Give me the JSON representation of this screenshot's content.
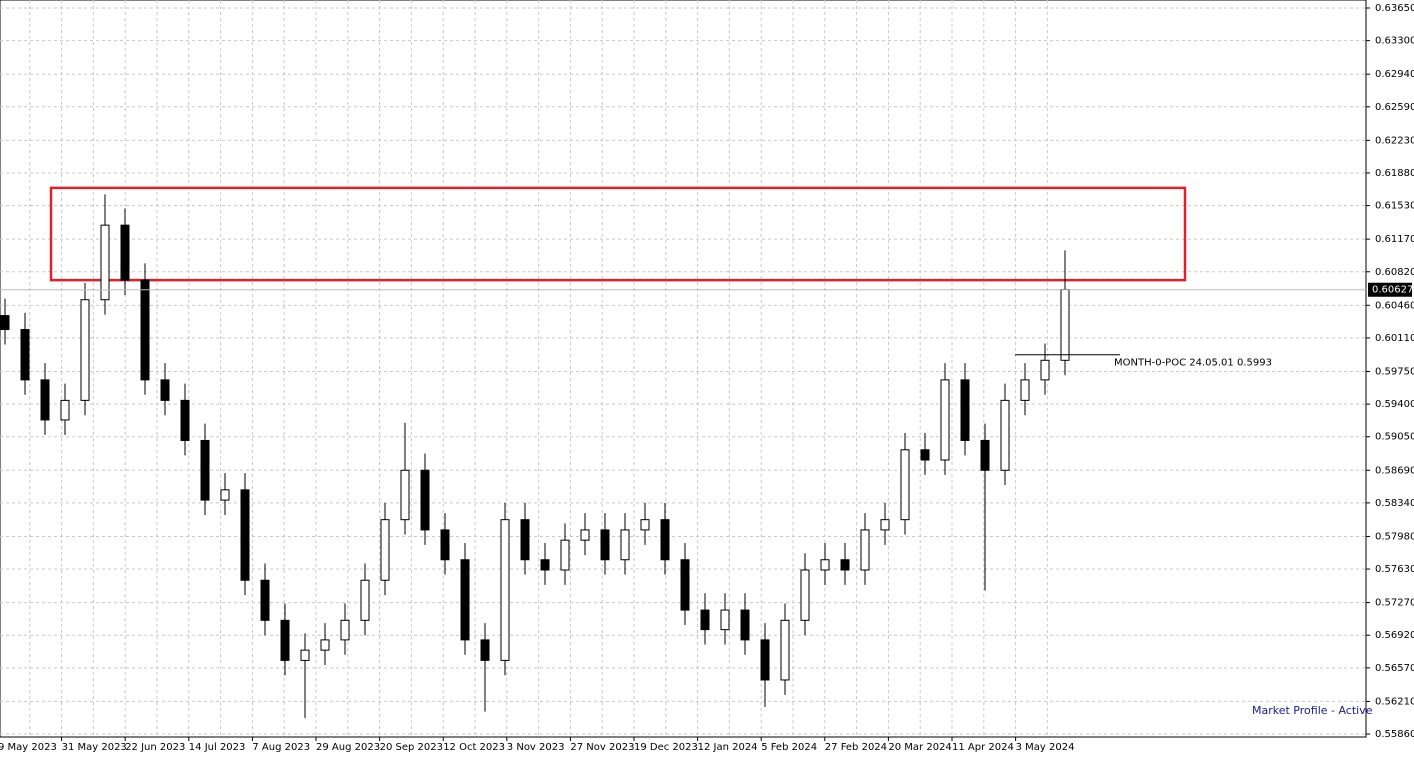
{
  "chart_data": {
    "type": "candlestick",
    "x_labels": [
      "9 May 2023",
      "31 May 2023",
      "22 Jun 2023",
      "14 Jul 2023",
      "7 Aug 2023",
      "29 Aug 2023",
      "20 Sep 2023",
      "12 Oct 2023",
      "3 Nov 2023",
      "27 Nov 2023",
      "19 Dec 2023",
      "12 Jan 2024",
      "5 Feb 2024",
      "27 Feb 2024",
      "20 Mar 2024",
      "11 Apr 2024",
      "3 May 2024"
    ],
    "open": [
      0.6035,
      0.602,
      0.5966,
      0.5923,
      0.5944,
      0.6052,
      0.6132,
      0.6073,
      0.5966,
      0.5944,
      0.5901,
      0.5837,
      0.5848,
      0.5751,
      0.5708,
      0.5665,
      0.5676,
      0.5687,
      0.5708,
      0.5751,
      0.5816,
      0.5869,
      0.5805,
      0.5773,
      0.5687,
      0.5665,
      0.5816,
      0.5773,
      0.5762,
      0.5794,
      0.5805,
      0.5773,
      0.5805,
      0.5816,
      0.5773,
      0.5719,
      0.5698,
      0.5719,
      0.5687,
      0.5644,
      0.5708,
      0.5762,
      0.5773,
      0.5762,
      0.5805,
      0.5816,
      0.5891,
      0.588,
      0.5966,
      0.5901,
      0.5869,
      0.5944,
      0.5966,
      0.5987
    ],
    "high": [
      0.6053,
      0.6038,
      0.5984,
      0.5962,
      0.607,
      0.6165,
      0.615,
      0.6091,
      0.5984,
      0.5962,
      0.5919,
      0.5866,
      0.5866,
      0.5769,
      0.5726,
      0.5694,
      0.5705,
      0.5726,
      0.5769,
      0.5834,
      0.592,
      0.5887,
      0.5823,
      0.5791,
      0.5705,
      0.5834,
      0.5834,
      0.5791,
      0.5812,
      0.5823,
      0.5823,
      0.5823,
      0.5834,
      0.5834,
      0.5791,
      0.5737,
      0.5737,
      0.5737,
      0.5705,
      0.5726,
      0.578,
      0.5791,
      0.5791,
      0.5823,
      0.5834,
      0.5909,
      0.5909,
      0.5984,
      0.5984,
      0.5919,
      0.5962,
      0.5984,
      0.6005,
      0.6105
    ],
    "low": [
      0.6004,
      0.595,
      0.5907,
      0.5907,
      0.5928,
      0.6036,
      0.6057,
      0.595,
      0.5928,
      0.5885,
      0.5821,
      0.5821,
      0.5735,
      0.5692,
      0.5649,
      0.5603,
      0.566,
      0.5671,
      0.5692,
      0.5735,
      0.58,
      0.5789,
      0.5757,
      0.5671,
      0.561,
      0.5649,
      0.5757,
      0.5746,
      0.5746,
      0.5778,
      0.5757,
      0.5757,
      0.5789,
      0.5757,
      0.5703,
      0.5682,
      0.5682,
      0.5671,
      0.5615,
      0.5628,
      0.5692,
      0.5746,
      0.5746,
      0.5746,
      0.5789,
      0.58,
      0.5864,
      0.5864,
      0.5885,
      0.574,
      0.5853,
      0.5928,
      0.595,
      0.5971
    ],
    "close": [
      0.602,
      0.5966,
      0.5923,
      0.5944,
      0.6052,
      0.6132,
      0.6073,
      0.5966,
      0.5944,
      0.5901,
      0.5837,
      0.5848,
      0.5751,
      0.5708,
      0.5665,
      0.5676,
      0.5687,
      0.5708,
      0.5751,
      0.5816,
      0.5869,
      0.5805,
      0.5773,
      0.5687,
      0.5665,
      0.5816,
      0.5773,
      0.5762,
      0.5794,
      0.5805,
      0.5773,
      0.5805,
      0.5816,
      0.5773,
      0.5719,
      0.5698,
      0.5719,
      0.5687,
      0.5644,
      0.5708,
      0.5762,
      0.5773,
      0.5762,
      0.5805,
      0.5816,
      0.5891,
      0.588,
      0.5966,
      0.5901,
      0.5869,
      0.5944,
      0.5966,
      0.5987,
      0.6063
    ],
    "ylim": [
      0.55828,
      0.63736
    ],
    "yticks": [
      {
        "value": 0.6365,
        "label": "0.63650"
      },
      {
        "value": 0.633,
        "label": "0.63300"
      },
      {
        "value": 0.6294,
        "label": "0.62940"
      },
      {
        "value": 0.6259,
        "label": "0.62590"
      },
      {
        "value": 0.6223,
        "label": "0.62230"
      },
      {
        "value": 0.6188,
        "label": "0.61880"
      },
      {
        "value": 0.6153,
        "label": "0.61530"
      },
      {
        "value": 0.6117,
        "label": "0.61170"
      },
      {
        "value": 0.6082,
        "label": "0.60820"
      },
      {
        "value": 0.6046,
        "label": "0.60460"
      },
      {
        "value": 0.6011,
        "label": "0.60110"
      },
      {
        "value": 0.5975,
        "label": "0.59750"
      },
      {
        "value": 0.594,
        "label": "0.59400"
      },
      {
        "value": 0.5905,
        "label": "0.59050"
      },
      {
        "value": 0.5869,
        "label": "0.58690"
      },
      {
        "value": 0.5834,
        "label": "0.58340"
      },
      {
        "value": 0.5798,
        "label": "0.57980"
      },
      {
        "value": 0.5763,
        "label": "0.57630"
      },
      {
        "value": 0.5727,
        "label": "0.57270"
      },
      {
        "value": 0.5692,
        "label": "0.56920"
      },
      {
        "value": 0.5657,
        "label": "0.56570"
      },
      {
        "value": 0.5621,
        "label": "0.56210"
      },
      {
        "value": 0.5586,
        "label": "0.55860"
      }
    ],
    "current_price": 0.60627,
    "poc": {
      "label": "MONTH-0-POC 24.05.01 0.5993",
      "value": 0.5993
    },
    "zone": [
      0.6073,
      0.6172
    ],
    "indicator_status": "Market Profile - Active",
    "grid": true
  }
}
